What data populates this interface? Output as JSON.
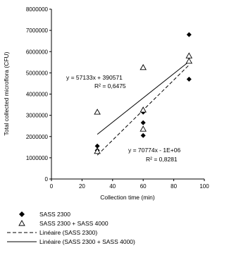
{
  "chart_data": {
    "type": "scatter",
    "title": "",
    "xlabel": "Collection time (min)",
    "ylabel": "Total collected microflora (CFU)",
    "xlim": [
      0,
      100
    ],
    "ylim": [
      0,
      8000000
    ],
    "xticks": [
      "0",
      "20",
      "40",
      "60",
      "80",
      "100"
    ],
    "yticks": [
      "0",
      "1000000",
      "2000000",
      "3000000",
      "4000000",
      "5000000",
      "6000000",
      "7000000",
      "8000000"
    ],
    "grid": false,
    "legend_position": "bottom",
    "series": [
      {
        "name": "SASS 2300",
        "marker": "diamond-filled",
        "points": [
          {
            "x": 30,
            "y": 1550000
          },
          {
            "x": 30,
            "y": 1350000
          },
          {
            "x": 60,
            "y": 3150000
          },
          {
            "x": 60,
            "y": 2650000
          },
          {
            "x": 60,
            "y": 2050000
          },
          {
            "x": 90,
            "y": 6800000
          },
          {
            "x": 90,
            "y": 4700000
          }
        ]
      },
      {
        "name": "SASS 2300 + SASS 4000",
        "marker": "triangle-open",
        "points": [
          {
            "x": 30,
            "y": 3150000
          },
          {
            "x": 30,
            "y": 1300000
          },
          {
            "x": 60,
            "y": 5250000
          },
          {
            "x": 60,
            "y": 3250000
          },
          {
            "x": 60,
            "y": 2350000
          },
          {
            "x": 90,
            "y": 5800000
          },
          {
            "x": 90,
            "y": 5550000
          }
        ]
      }
    ],
    "trendlines": [
      {
        "name": "Linéaire (SASS 2300)",
        "style": "dashed",
        "slope": 70774,
        "intercept": -1000000,
        "x_range": [
          30,
          90
        ],
        "equation": "y = 70774x - 1E+06",
        "r2": "R² = 0,8281"
      },
      {
        "name": "Linéaire (SASS 2300 + SASS 4000)",
        "style": "solid",
        "slope": 57133,
        "intercept": 390571,
        "x_range": [
          30,
          90
        ],
        "equation": "y = 57133x + 390571",
        "r2": "R² = 0,6475"
      }
    ]
  }
}
